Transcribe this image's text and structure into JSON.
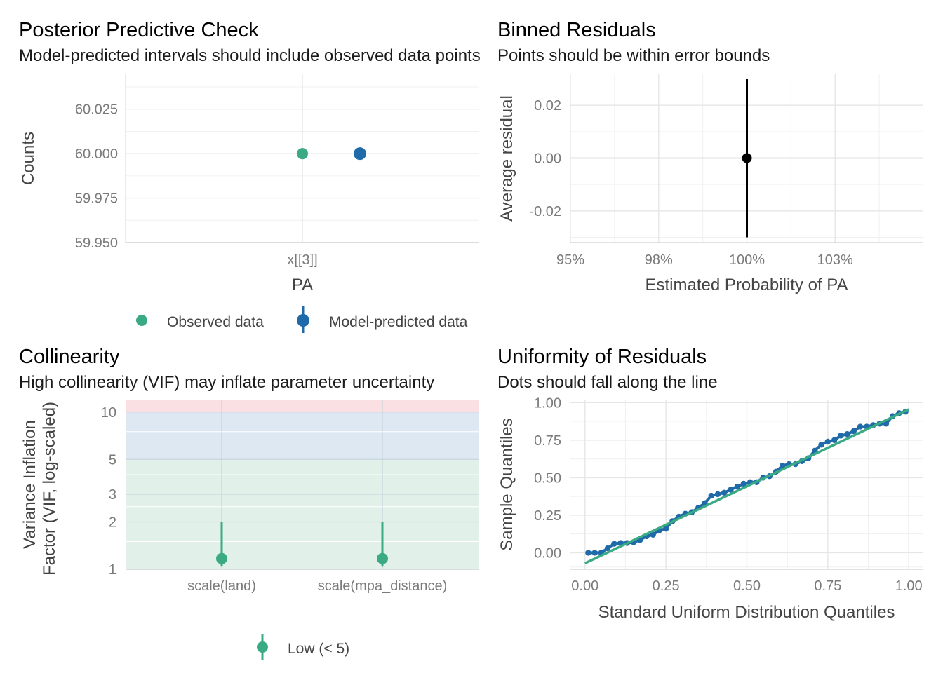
{
  "colors": {
    "observed": "#3aaa85",
    "predicted": "#1f6aa8",
    "black": "#000000",
    "grid": "#e6e6e6",
    "zone_low": "#e1f1ea",
    "zone_moderate": "#dde8f2",
    "zone_high": "#fbe0e3"
  },
  "chart_data": [
    {
      "type": "scatter",
      "title": "Posterior Predictive Check",
      "subtitle": "Model-predicted intervals should include observed data points",
      "xlabel": "PA",
      "ylabel": "Counts",
      "categories": [
        "x[[3]]"
      ],
      "ylim": [
        59.95,
        60.045
      ],
      "yticks": [
        "59.950",
        "59.975",
        "60.000",
        "60.025"
      ],
      "series": [
        {
          "name": "Observed data",
          "values": [
            60.0
          ]
        },
        {
          "name": "Model-predicted data",
          "values": [
            60.0
          ]
        }
      ],
      "legend": "bottom",
      "grid": true
    },
    {
      "type": "scatter",
      "title": "Binned Residuals",
      "subtitle": "Points should be within error bounds",
      "xlabel": "Estimated Probability of PA",
      "ylabel": "Average residual",
      "xlim": [
        0.95,
        1.05
      ],
      "ylim": [
        -0.032,
        0.032
      ],
      "xticks": [
        "95%",
        "98%",
        "100%",
        "103%"
      ],
      "yticks": [
        "-0.02",
        "0.00",
        "0.02"
      ],
      "points": [
        {
          "x": 1.0,
          "y": 0.0,
          "ymin": -0.03,
          "ymax": 0.03
        }
      ],
      "grid": true
    },
    {
      "type": "scatter",
      "title": "Collinearity",
      "subtitle": "High collinearity (VIF) may inflate parameter uncertainty",
      "xlabel": "",
      "ylabel": "Variance Inflation",
      "ylabel2": "Factor (VIF, log-scaled)",
      "y_scale": "log",
      "categories": [
        "scale(land)",
        "scale(mpa_distance)"
      ],
      "ylim": [
        1,
        12
      ],
      "yticks": [
        "1",
        "2",
        "3",
        "5",
        "10"
      ],
      "series": [
        {
          "name": "Low (< 5)",
          "values": [
            1.17,
            1.17
          ],
          "ymin": [
            1.04,
            1.04
          ],
          "ymax": [
            1.99,
            1.99
          ]
        }
      ],
      "zones": [
        {
          "from": 1,
          "to": 5,
          "level": "low"
        },
        {
          "from": 5,
          "to": 10,
          "level": "moderate"
        },
        {
          "from": 10,
          "to": 12,
          "level": "high"
        }
      ],
      "legend": "bottom",
      "grid": true
    },
    {
      "type": "scatter",
      "title": "Uniformity of Residuals",
      "subtitle": "Dots should fall along the line",
      "xlabel": "Standard Uniform Distribution Quantiles",
      "ylabel": "Sample Quantiles",
      "xlim": [
        -0.045,
        1.045
      ],
      "ylim": [
        -0.11,
        1.02
      ],
      "xticks": [
        "0.00",
        "0.25",
        "0.50",
        "0.75",
        "1.00"
      ],
      "yticks": [
        "0.00",
        "0.25",
        "0.50",
        "0.75",
        "1.00"
      ],
      "line": {
        "x": [
          0.0,
          1.0
        ],
        "y": [
          -0.07,
          0.955
        ]
      },
      "points": {
        "x": [
          0.01,
          0.03,
          0.05,
          0.07,
          0.09,
          0.11,
          0.13,
          0.15,
          0.17,
          0.19,
          0.21,
          0.23,
          0.25,
          0.27,
          0.29,
          0.31,
          0.33,
          0.35,
          0.37,
          0.39,
          0.41,
          0.43,
          0.45,
          0.47,
          0.49,
          0.51,
          0.53,
          0.55,
          0.57,
          0.59,
          0.61,
          0.63,
          0.65,
          0.67,
          0.69,
          0.71,
          0.73,
          0.75,
          0.77,
          0.79,
          0.81,
          0.83,
          0.85,
          0.87,
          0.89,
          0.91,
          0.93,
          0.95,
          0.97,
          0.99
        ],
        "y": [
          0.0,
          0.0,
          0.0,
          0.03,
          0.06,
          0.065,
          0.065,
          0.07,
          0.085,
          0.11,
          0.12,
          0.15,
          0.16,
          0.21,
          0.24,
          0.26,
          0.27,
          0.3,
          0.33,
          0.38,
          0.39,
          0.4,
          0.42,
          0.44,
          0.46,
          0.47,
          0.47,
          0.5,
          0.51,
          0.54,
          0.58,
          0.59,
          0.59,
          0.61,
          0.63,
          0.68,
          0.72,
          0.74,
          0.75,
          0.78,
          0.79,
          0.81,
          0.84,
          0.84,
          0.85,
          0.86,
          0.86,
          0.91,
          0.93,
          0.94
        ]
      },
      "grid": true
    }
  ]
}
